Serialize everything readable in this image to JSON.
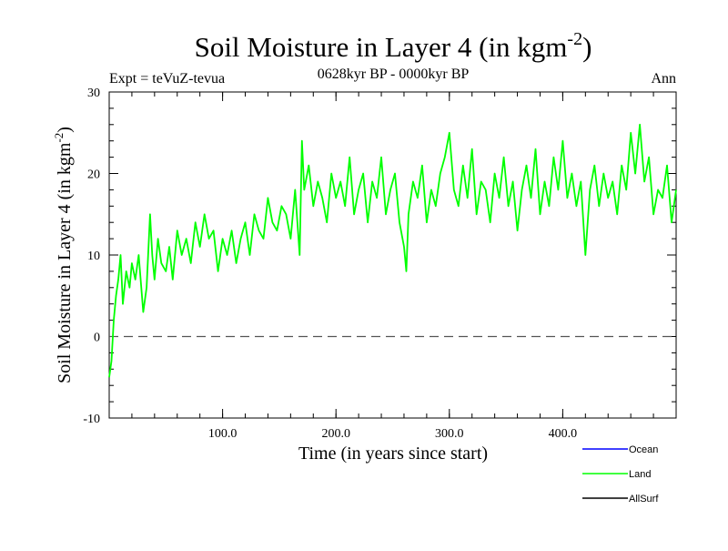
{
  "chart_data": {
    "type": "line",
    "title": "Soil Moisture in Layer 4 (in kgm",
    "title_superscript": "-2",
    "title_suffix": ")",
    "subtitle_left": "Expt = teVuZ-tevua",
    "subtitle_center": "0628kyr BP - 0000kyr BP",
    "subtitle_right": "Ann",
    "xlabel": "Time (in years since start)",
    "ylabel": "Soil Moisture in Layer 4 (in kgm",
    "ylabel_superscript": "-2",
    "ylabel_suffix": ")",
    "xlim": [
      0,
      500
    ],
    "ylim": [
      -10,
      30
    ],
    "x_ticks": [
      100,
      200,
      300,
      400
    ],
    "x_tick_labels": [
      "100.0",
      "200.0",
      "300.0",
      "400.0"
    ],
    "y_ticks": [
      -10,
      0,
      10,
      20,
      30
    ],
    "y_tick_labels": [
      "-10",
      "0",
      "10",
      "20",
      "30"
    ],
    "zero_line": true,
    "legend_position": "bottom-right",
    "legend": [
      {
        "name": "Ocean",
        "color": "#0000ff"
      },
      {
        "name": "Land",
        "color": "#00ff00"
      },
      {
        "name": "AllSurf",
        "color": "#000000"
      }
    ],
    "series": [
      {
        "name": "Land",
        "color": "#00ff00",
        "x": [
          0,
          2,
          4,
          6,
          8,
          10,
          12,
          15,
          18,
          20,
          23,
          26,
          30,
          33,
          36,
          38,
          40,
          43,
          46,
          50,
          53,
          56,
          60,
          64,
          68,
          72,
          76,
          80,
          84,
          88,
          92,
          96,
          100,
          104,
          108,
          112,
          116,
          120,
          124,
          128,
          132,
          136,
          140,
          144,
          148,
          152,
          156,
          160,
          164,
          168,
          170,
          172,
          176,
          180,
          184,
          188,
          192,
          196,
          200,
          204,
          208,
          212,
          216,
          220,
          224,
          228,
          232,
          236,
          240,
          244,
          248,
          252,
          256,
          260,
          262,
          264,
          268,
          272,
          276,
          280,
          284,
          288,
          292,
          296,
          300,
          304,
          308,
          312,
          316,
          320,
          324,
          328,
          332,
          336,
          340,
          344,
          348,
          352,
          356,
          360,
          364,
          368,
          372,
          376,
          380,
          384,
          388,
          392,
          396,
          400,
          404,
          408,
          412,
          416,
          420,
          424,
          428,
          432,
          436,
          440,
          444,
          448,
          452,
          456,
          460,
          464,
          468,
          472,
          476,
          480,
          484,
          488,
          492,
          496,
          500
        ],
        "y": [
          -5,
          -3,
          2,
          5,
          7,
          10,
          4,
          8,
          6,
          9,
          7,
          10,
          3,
          6,
          15,
          10,
          7,
          12,
          9,
          8,
          11,
          7,
          13,
          10,
          12,
          9,
          14,
          11,
          15,
          12,
          13,
          8,
          12,
          10,
          13,
          9,
          12,
          14,
          10,
          15,
          13,
          12,
          17,
          14,
          13,
          16,
          15,
          12,
          18,
          10,
          24,
          18,
          21,
          16,
          19,
          17,
          14,
          20,
          17,
          19,
          16,
          22,
          15,
          18,
          20,
          14,
          19,
          17,
          22,
          15,
          18,
          20,
          14,
          11,
          8,
          15,
          19,
          17,
          21,
          14,
          18,
          16,
          20,
          22,
          25,
          18,
          16,
          21,
          17,
          23,
          15,
          19,
          18,
          14,
          20,
          17,
          22,
          16,
          19,
          13,
          18,
          21,
          17,
          23,
          15,
          19,
          16,
          22,
          18,
          24,
          17,
          20,
          16,
          19,
          10,
          18,
          21,
          16,
          20,
          17,
          19,
          15,
          21,
          18,
          25,
          20,
          26,
          19,
          22,
          15,
          18,
          17,
          21,
          14,
          18
        ]
      }
    ]
  }
}
